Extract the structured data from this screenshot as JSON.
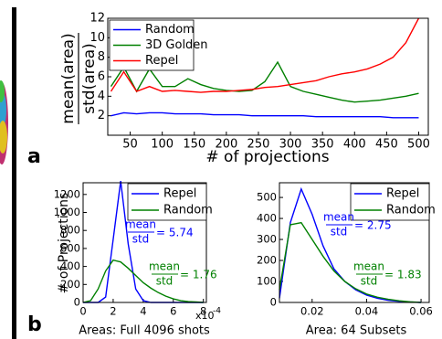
{
  "panel_labels": [
    "a",
    "b"
  ],
  "chart_data": [
    {
      "type": "line",
      "ylabel_numerator": "mean(area)",
      "ylabel_denominator": "std(area)",
      "xlabel": "# of projections",
      "x": [
        20,
        40,
        60,
        80,
        100,
        120,
        140,
        160,
        180,
        200,
        220,
        240,
        260,
        280,
        300,
        320,
        340,
        360,
        380,
        400,
        420,
        440,
        460,
        480,
        500
      ],
      "series": [
        {
          "name": "Random",
          "color": "#0000ff",
          "values": [
            2.0,
            2.3,
            2.2,
            2.3,
            2.3,
            2.2,
            2.2,
            2.2,
            2.1,
            2.1,
            2.1,
            2.0,
            2.0,
            2.0,
            2.0,
            2.0,
            1.9,
            1.9,
            1.9,
            1.9,
            1.9,
            1.9,
            1.8,
            1.8,
            1.8
          ]
        },
        {
          "name": "3D Golden",
          "color": "#008000",
          "values": [
            5.0,
            7.0,
            4.5,
            6.8,
            5.0,
            5.0,
            5.8,
            5.2,
            4.8,
            4.6,
            4.5,
            4.6,
            5.5,
            7.5,
            5.0,
            4.5,
            4.2,
            3.9,
            3.6,
            3.4,
            3.5,
            3.6,
            3.8,
            4.0,
            4.3
          ]
        },
        {
          "name": "Repel",
          "color": "#ff0000",
          "values": [
            4.5,
            6.5,
            4.5,
            5.0,
            4.5,
            4.6,
            4.5,
            4.4,
            4.5,
            4.5,
            4.6,
            4.7,
            4.9,
            5.0,
            5.2,
            5.4,
            5.6,
            6.0,
            6.3,
            6.5,
            6.8,
            7.3,
            8.0,
            9.5,
            12
          ]
        }
      ],
      "xlim": [
        15,
        515
      ],
      "xticks": [
        50,
        100,
        150,
        200,
        250,
        300,
        350,
        400,
        450,
        500
      ],
      "ylim": [
        0,
        12
      ],
      "yticks": [
        2,
        4,
        6,
        8,
        10,
        12
      ],
      "legend": "upper-left"
    },
    {
      "type": "line",
      "ylabel": "# of Projections",
      "xlabel": "Areas: Full 4096 shots",
      "x_multiplier": "x10",
      "x_multiplier_exp": "-4",
      "x": [
        0,
        0.5,
        1,
        1.5,
        2,
        2.5,
        3,
        3.5,
        4,
        4.5,
        5,
        5.5,
        6,
        6.5,
        7,
        7.5,
        8
      ],
      "series": [
        {
          "name": "Repel",
          "color": "#0000ff",
          "values": [
            0,
            0,
            0,
            60,
            700,
            1350,
            650,
            150,
            20,
            0,
            0,
            0,
            0,
            0,
            0,
            0,
            0
          ]
        },
        {
          "name": "Random",
          "color": "#008000",
          "values": [
            0,
            20,
            150,
            350,
            470,
            450,
            380,
            300,
            220,
            160,
            110,
            70,
            40,
            20,
            10,
            5,
            0
          ]
        }
      ],
      "annotations": [
        {
          "numerator": "mean",
          "denominator": "std",
          "text": "= 5.74",
          "color": "#0000ff"
        },
        {
          "numerator": "mean",
          "denominator": "std",
          "text": "= 1.76",
          "color": "#008000"
        }
      ],
      "xlim": [
        0,
        8.2
      ],
      "xticks": [
        0,
        2,
        4,
        6,
        8
      ],
      "ylim": [
        0,
        1330
      ],
      "yticks": [
        0,
        200,
        400,
        600,
        800,
        1000,
        1200
      ],
      "legend": "upper-right"
    },
    {
      "type": "line",
      "xlabel": "Area: 64 Subsets",
      "x": [
        0.008,
        0.012,
        0.016,
        0.02,
        0.024,
        0.028,
        0.032,
        0.036,
        0.04,
        0.044,
        0.048,
        0.052,
        0.056,
        0.06
      ],
      "series": [
        {
          "name": "Repel",
          "color": "#0000ff",
          "values": [
            20,
            380,
            540,
            420,
            270,
            160,
            100,
            60,
            35,
            20,
            10,
            5,
            2,
            0
          ]
        },
        {
          "name": "Random",
          "color": "#008000",
          "values": [
            60,
            370,
            380,
            300,
            220,
            150,
            100,
            65,
            40,
            25,
            15,
            8,
            3,
            0
          ]
        }
      ],
      "annotations": [
        {
          "numerator": "mean",
          "denominator": "std",
          "text": "= 2.75",
          "color": "#0000ff"
        },
        {
          "numerator": "mean",
          "denominator": "std",
          "text": "= 1.83",
          "color": "#008000"
        }
      ],
      "xlim": [
        0.008,
        0.063
      ],
      "xticks": [
        0.02,
        0.04,
        0.06
      ],
      "ylim": [
        0,
        570
      ],
      "yticks": [
        0,
        100,
        200,
        300,
        400,
        500
      ],
      "legend": "upper-right"
    }
  ]
}
